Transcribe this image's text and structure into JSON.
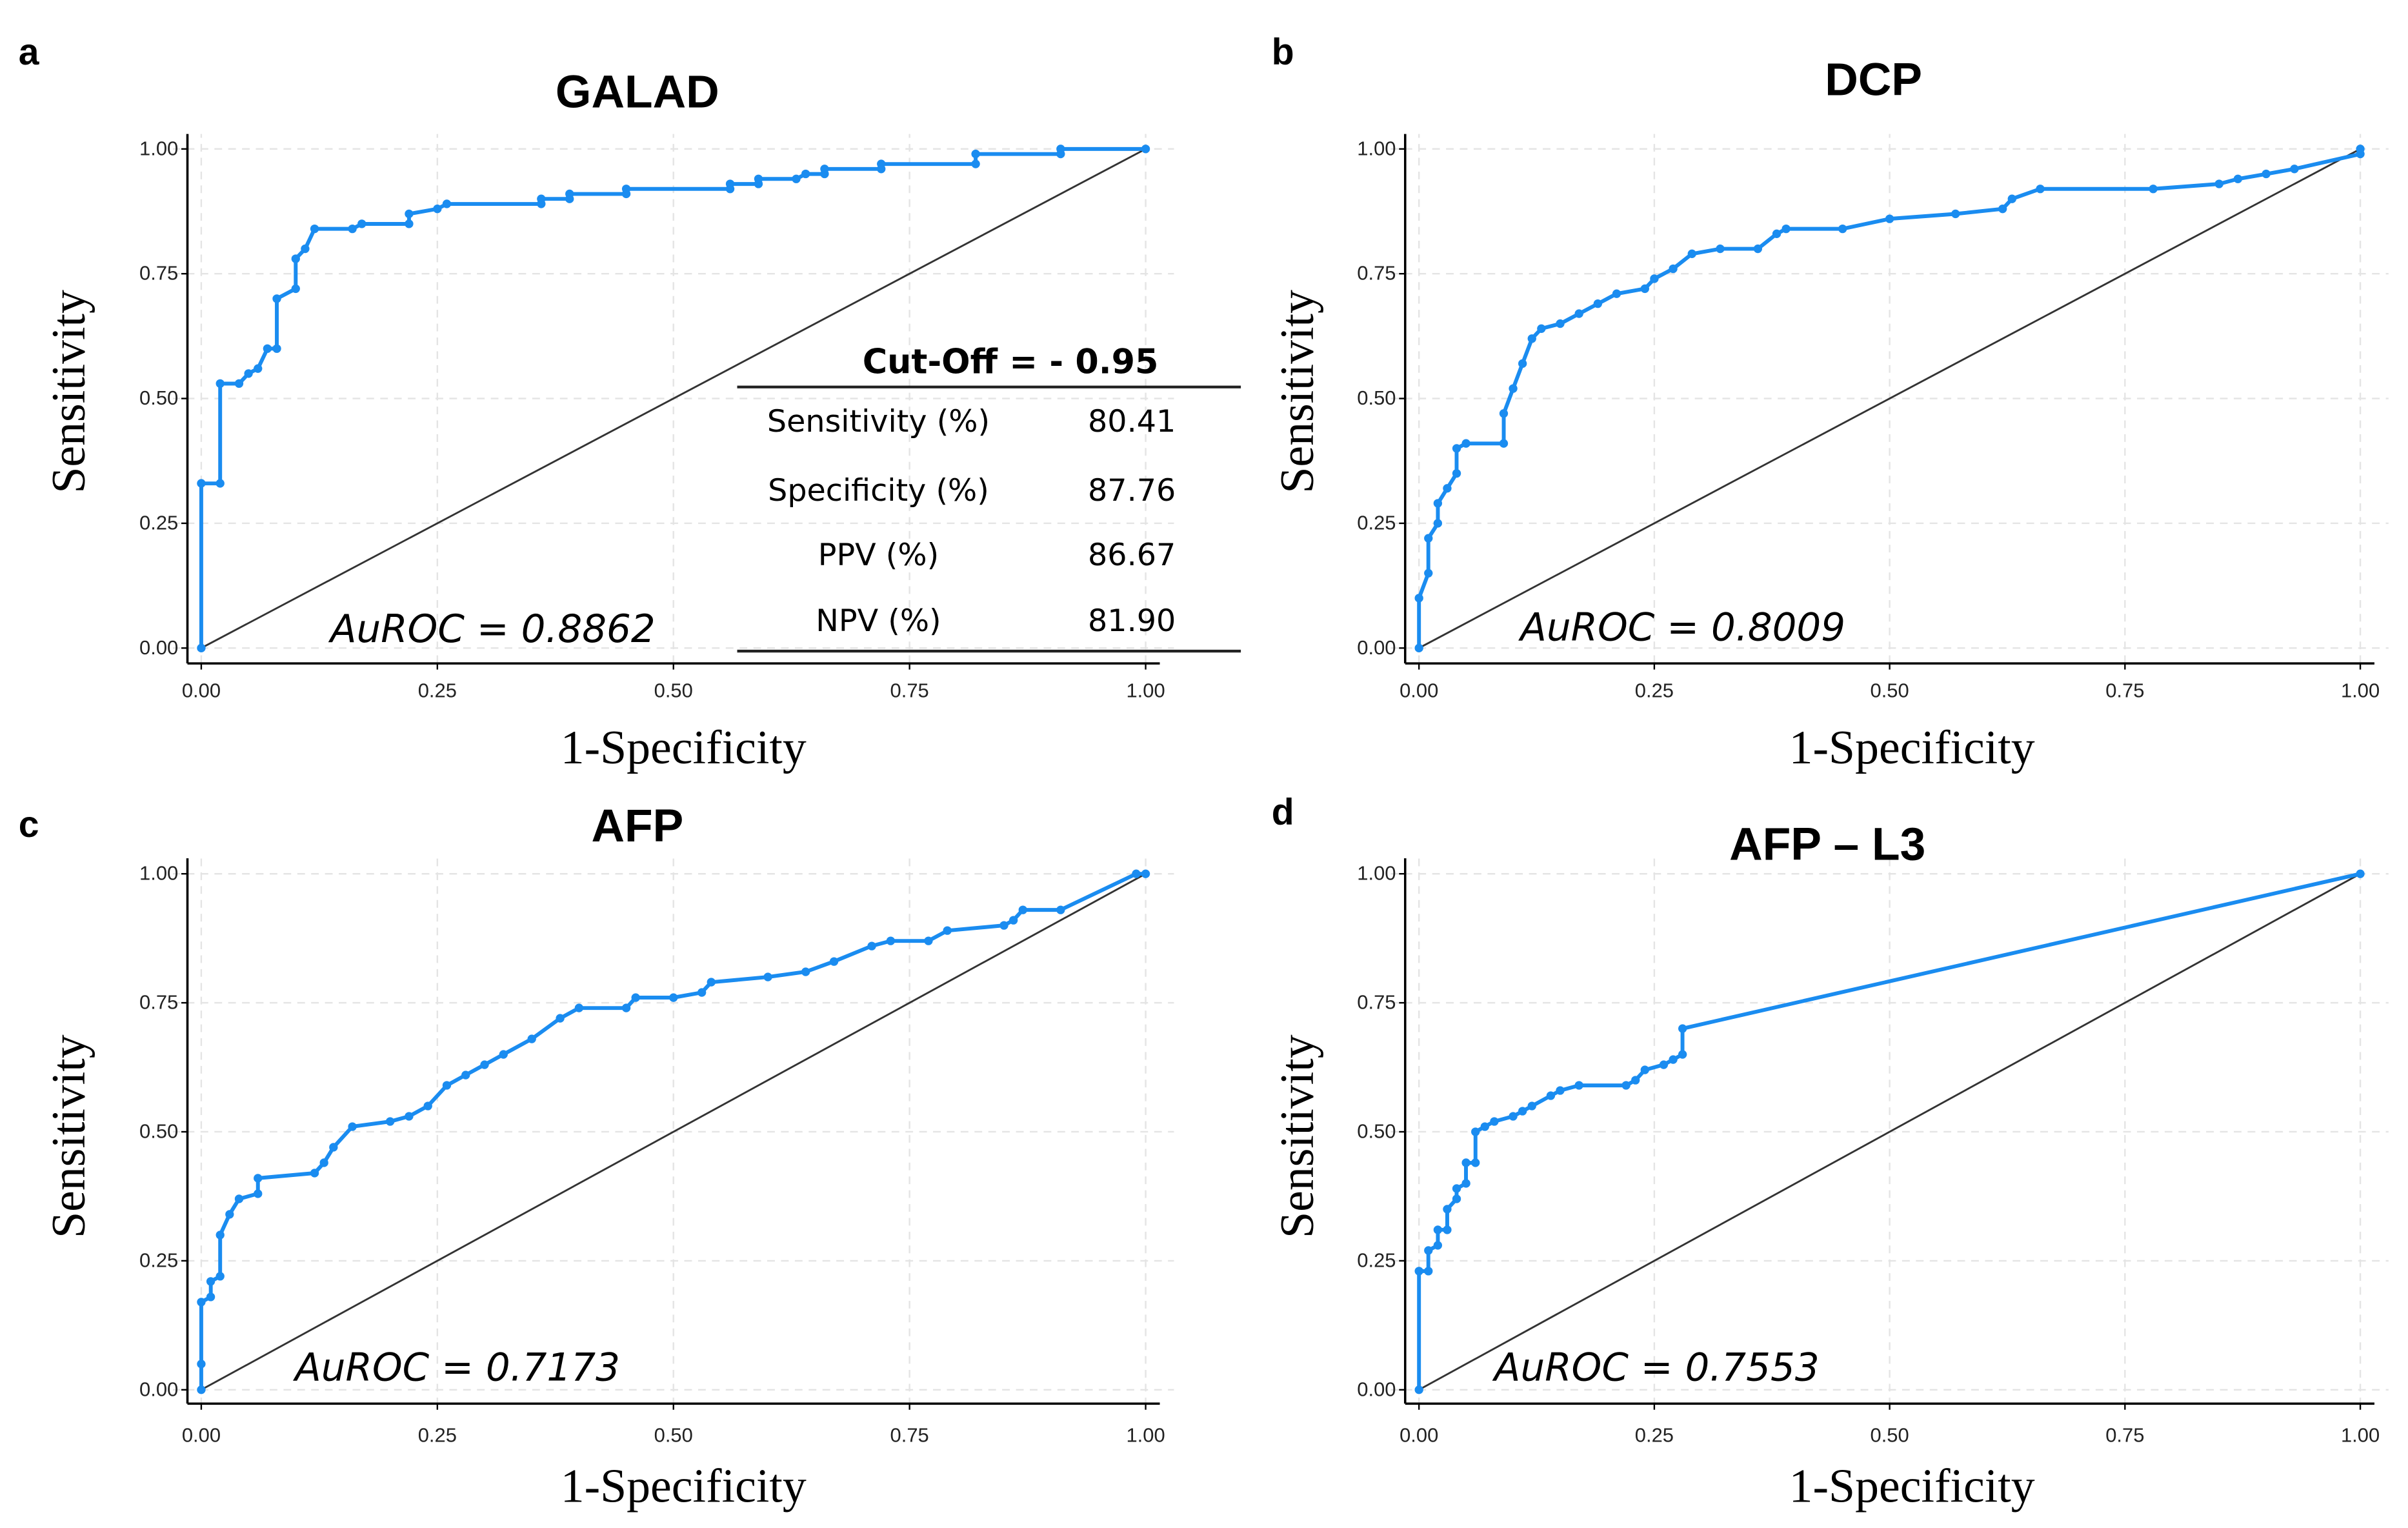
{
  "colors": {
    "curve": "#1a8cf0",
    "diagonal": "#333333",
    "grid": "#e4e4e4"
  },
  "chart_data": [
    {
      "type": "line",
      "panel_letter": "a",
      "title": "GALAD",
      "xlabel": "1-Specificity",
      "ylabel": "Sensitivity",
      "xlim": [
        0,
        1
      ],
      "ylim": [
        0,
        1
      ],
      "xticks": [
        "0.00",
        "0.25",
        "0.50",
        "0.75",
        "1.00"
      ],
      "yticks": [
        "0.00",
        "0.25",
        "0.50",
        "0.75",
        "1.00"
      ],
      "grid": true,
      "annotation": "AuROC = 0.8862",
      "table": {
        "header": "Cut-Off = - 0.95",
        "rows": [
          {
            "label": "Sensitivity (%)",
            "value": "80.41"
          },
          {
            "label": "Specificity (%)",
            "value": "87.76"
          },
          {
            "label": "PPV (%)",
            "value": "86.67"
          },
          {
            "label": "NPV (%)",
            "value": "81.90"
          }
        ]
      },
      "x": [
        0,
        0,
        0.02,
        0.02,
        0.04,
        0.05,
        0.06,
        0.07,
        0.08,
        0.08,
        0.1,
        0.1,
        0.11,
        0.12,
        0.16,
        0.17,
        0.22,
        0.22,
        0.25,
        0.26,
        0.36,
        0.36,
        0.39,
        0.39,
        0.45,
        0.45,
        0.56,
        0.56,
        0.59,
        0.59,
        0.63,
        0.64,
        0.66,
        0.66,
        0.72,
        0.72,
        0.82,
        0.82,
        0.91,
        0.91,
        1
      ],
      "y": [
        0,
        0.33,
        0.33,
        0.53,
        0.53,
        0.55,
        0.56,
        0.6,
        0.6,
        0.7,
        0.72,
        0.78,
        0.8,
        0.84,
        0.84,
        0.85,
        0.85,
        0.87,
        0.88,
        0.89,
        0.89,
        0.9,
        0.9,
        0.91,
        0.91,
        0.92,
        0.92,
        0.93,
        0.93,
        0.94,
        0.94,
        0.95,
        0.95,
        0.96,
        0.96,
        0.97,
        0.97,
        0.99,
        0.99,
        1,
        1
      ]
    },
    {
      "type": "line",
      "panel_letter": "b",
      "title": "DCP",
      "xlabel": "1-Specificity",
      "ylabel": "Sensitivity",
      "xlim": [
        0,
        1
      ],
      "ylim": [
        0,
        1
      ],
      "xticks": [
        "0.00",
        "0.25",
        "0.50",
        "0.75",
        "1.00"
      ],
      "yticks": [
        "0.00",
        "0.25",
        "0.50",
        "0.75",
        "1.00"
      ],
      "grid": true,
      "annotation": "AuROC = 0.8009",
      "x": [
        0,
        0,
        0.01,
        0.01,
        0.02,
        0.02,
        0.03,
        0.04,
        0.04,
        0.05,
        0.09,
        0.09,
        0.1,
        0.11,
        0.12,
        0.13,
        0.15,
        0.17,
        0.19,
        0.21,
        0.24,
        0.25,
        0.27,
        0.29,
        0.32,
        0.36,
        0.38,
        0.39,
        0.45,
        0.5,
        0.57,
        0.62,
        0.63,
        0.66,
        0.78,
        0.85,
        0.87,
        0.9,
        0.93,
        1,
        1
      ],
      "y": [
        0,
        0.1,
        0.15,
        0.22,
        0.25,
        0.29,
        0.32,
        0.35,
        0.4,
        0.41,
        0.41,
        0.47,
        0.52,
        0.57,
        0.62,
        0.64,
        0.65,
        0.67,
        0.69,
        0.71,
        0.72,
        0.74,
        0.76,
        0.79,
        0.8,
        0.8,
        0.83,
        0.84,
        0.84,
        0.86,
        0.87,
        0.88,
        0.9,
        0.92,
        0.92,
        0.93,
        0.94,
        0.95,
        0.96,
        0.99,
        1
      ]
    },
    {
      "type": "line",
      "panel_letter": "c",
      "title": "AFP",
      "xlabel": "1-Specificity",
      "ylabel": "Sensitivity",
      "xlim": [
        0,
        1
      ],
      "ylim": [
        0,
        1
      ],
      "xticks": [
        "0.00",
        "0.25",
        "0.50",
        "0.75",
        "1.00"
      ],
      "yticks": [
        "0.00",
        "0.25",
        "0.50",
        "0.75",
        "1.00"
      ],
      "grid": true,
      "annotation": "AuROC = 0.7173",
      "x": [
        0,
        0,
        0,
        0.01,
        0.01,
        0.02,
        0.02,
        0.03,
        0.04,
        0.06,
        0.06,
        0.12,
        0.13,
        0.14,
        0.16,
        0.2,
        0.22,
        0.24,
        0.26,
        0.28,
        0.3,
        0.32,
        0.35,
        0.38,
        0.4,
        0.45,
        0.46,
        0.5,
        0.53,
        0.54,
        0.6,
        0.64,
        0.67,
        0.71,
        0.73,
        0.77,
        0.79,
        0.85,
        0.86,
        0.87,
        0.91,
        0.99,
        1
      ],
      "y": [
        0,
        0.05,
        0.17,
        0.18,
        0.21,
        0.22,
        0.3,
        0.34,
        0.37,
        0.38,
        0.41,
        0.42,
        0.44,
        0.47,
        0.51,
        0.52,
        0.53,
        0.55,
        0.59,
        0.61,
        0.63,
        0.65,
        0.68,
        0.72,
        0.74,
        0.74,
        0.76,
        0.76,
        0.77,
        0.79,
        0.8,
        0.81,
        0.83,
        0.86,
        0.87,
        0.87,
        0.89,
        0.9,
        0.91,
        0.93,
        0.93,
        1,
        1
      ]
    },
    {
      "type": "line",
      "panel_letter": "d",
      "title": "AFP – L3",
      "xlabel": "1-Specificity",
      "ylabel": "Sensitivity",
      "xlim": [
        0,
        1
      ],
      "ylim": [
        0,
        1
      ],
      "xticks": [
        "0.00",
        "0.25",
        "0.50",
        "0.75",
        "1.00"
      ],
      "yticks": [
        "0.00",
        "0.25",
        "0.50",
        "0.75",
        "1.00"
      ],
      "grid": true,
      "annotation": "AuROC = 0.7553",
      "x": [
        0,
        0,
        0.01,
        0.01,
        0.02,
        0.02,
        0.03,
        0.03,
        0.04,
        0.04,
        0.05,
        0.05,
        0.06,
        0.06,
        0.07,
        0.08,
        0.1,
        0.11,
        0.12,
        0.14,
        0.15,
        0.17,
        0.22,
        0.23,
        0.24,
        0.26,
        0.27,
        0.28,
        0.28,
        1
      ],
      "y": [
        0,
        0.23,
        0.23,
        0.27,
        0.28,
        0.31,
        0.31,
        0.35,
        0.37,
        0.39,
        0.4,
        0.44,
        0.44,
        0.5,
        0.51,
        0.52,
        0.53,
        0.54,
        0.55,
        0.57,
        0.58,
        0.59,
        0.59,
        0.6,
        0.62,
        0.63,
        0.64,
        0.65,
        0.7,
        1
      ]
    }
  ]
}
